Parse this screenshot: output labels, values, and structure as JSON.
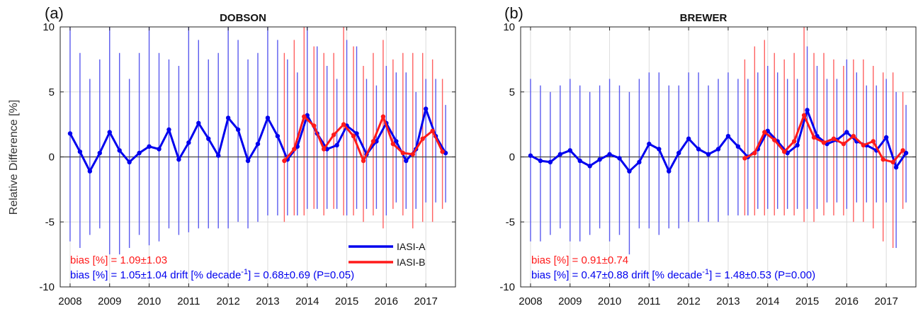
{
  "figure": {
    "ylabel": "Relative Difference [%]",
    "legend": [
      {
        "label": "IASI-A",
        "color": "#0000ee"
      },
      {
        "label": "IASI-B",
        "color": "#ff1a1a"
      }
    ],
    "colors": {
      "iasi_a": "#0000ee",
      "iasi_b": "#ff1a1a",
      "iasi_a_bar": "#5a5aee",
      "iasi_b_bar": "#ff6060"
    }
  },
  "chart_data": [
    {
      "type": "line",
      "panel_label": "(a)",
      "title": "DOBSON",
      "ylim": [
        -10,
        10
      ],
      "yticks": [
        -10,
        -5,
        0,
        5,
        10
      ],
      "xlim": [
        2007.75,
        2017.75
      ],
      "xticks": [
        2008,
        2009,
        2010,
        2011,
        2012,
        2013,
        2014,
        2015,
        2016,
        2017
      ],
      "grid": true,
      "legend_position": "bottom-right",
      "annotations": [
        "bias [%] = 1.09±1.03",
        "bias [%] = 1.05±1.04  drift [% decade",
        "-1",
        "] = 0.68±0.69 (P=0.05)"
      ],
      "series": [
        {
          "name": "IASI-A",
          "color": "#0000ee",
          "x": [
            2008.0,
            2008.25,
            2008.5,
            2008.75,
            2009.0,
            2009.25,
            2009.5,
            2009.75,
            2010.0,
            2010.25,
            2010.5,
            2010.75,
            2011.0,
            2011.25,
            2011.5,
            2011.75,
            2012.0,
            2012.25,
            2012.5,
            2012.75,
            2013.0,
            2013.25,
            2013.5,
            2013.75,
            2014.0,
            2014.25,
            2014.5,
            2014.75,
            2015.0,
            2015.25,
            2015.5,
            2015.75,
            2016.0,
            2016.25,
            2016.5,
            2016.75,
            2017.0,
            2017.25,
            2017.5
          ],
          "y": [
            1.8,
            0.4,
            -1.1,
            0.3,
            1.9,
            0.5,
            -0.4,
            0.3,
            0.8,
            0.6,
            2.1,
            -0.2,
            1.1,
            2.6,
            1.4,
            0.1,
            3.0,
            2.1,
            -0.3,
            1.0,
            3.0,
            1.6,
            -0.2,
            0.8,
            3.2,
            1.8,
            0.6,
            0.9,
            2.4,
            1.8,
            0.2,
            1.2,
            2.6,
            1.2,
            -0.3,
            0.6,
            3.7,
            1.6,
            0.3
          ],
          "err_lo": [
            -6.5,
            -7.0,
            -6.0,
            -5.5,
            -7.5,
            -7.5,
            -7.0,
            -6.0,
            -6.8,
            -6.5,
            -5.5,
            -6.0,
            -5.8,
            -5.5,
            -5.5,
            -5.5,
            -5.5,
            -5.0,
            -5.5,
            -5.0,
            -4.5,
            -4.5,
            -4.5,
            -4.5,
            -4.0,
            -4.0,
            -4.0,
            -4.0,
            -4.5,
            -4.0,
            -4.0,
            -4.0,
            -4.5,
            -3.5,
            -4.0,
            -4.0,
            -3.5,
            -3.5,
            -3.5
          ],
          "err_hi": [
            10.0,
            8.0,
            6.0,
            7.5,
            10.0,
            8.0,
            6.0,
            8.0,
            10.0,
            8.0,
            7.5,
            7.0,
            10.0,
            9.0,
            7.5,
            8.0,
            10.0,
            9.0,
            7.5,
            8.0,
            10.0,
            9.0,
            7.5,
            6.5,
            10.0,
            8.5,
            7.0,
            6.0,
            9.0,
            8.5,
            6.0,
            5.5,
            7.0,
            6.5,
            6.5,
            5.0,
            6.0,
            6.0,
            4.0
          ]
        },
        {
          "name": "IASI-B",
          "color": "#ff1a1a",
          "x": [
            2013.42,
            2013.67,
            2013.92,
            2014.17,
            2014.42,
            2014.67,
            2014.92,
            2015.17,
            2015.42,
            2015.67,
            2015.92,
            2016.17,
            2016.42,
            2016.67,
            2016.92,
            2017.17,
            2017.42
          ],
          "y": [
            -0.3,
            0.6,
            3.1,
            2.4,
            0.6,
            1.7,
            2.5,
            1.6,
            -0.3,
            1.2,
            3.1,
            1.0,
            0.3,
            0.2,
            1.4,
            2.0,
            0.4
          ],
          "err_lo": [
            -5.0,
            -4.5,
            -4.5,
            -4.0,
            -4.5,
            -4.0,
            -4.5,
            -4.5,
            -5.0,
            -4.5,
            -5.5,
            -4.0,
            -4.5,
            -5.5,
            -5.0,
            -5.0,
            -4.0
          ],
          "err_hi": [
            8.0,
            9.0,
            10.0,
            8.5,
            8.0,
            8.0,
            10.0,
            8.5,
            7.0,
            8.0,
            9.0,
            7.5,
            8.0,
            8.0,
            8.0,
            7.5,
            6.0
          ]
        }
      ]
    },
    {
      "type": "line",
      "panel_label": "(b)",
      "title": "BREWER",
      "ylim": [
        -10,
        10
      ],
      "yticks": [
        -10,
        -5,
        0,
        5,
        10
      ],
      "xlim": [
        2007.75,
        2017.75
      ],
      "xticks": [
        2008,
        2009,
        2010,
        2011,
        2012,
        2013,
        2014,
        2015,
        2016,
        2017
      ],
      "grid": true,
      "annotations": [
        "bias [%] = 0.91±0.74",
        "bias [%] = 0.47±0.88  drift [% decade",
        "-1",
        "] = 1.48±0.53 (P=0.00)"
      ],
      "series": [
        {
          "name": "IASI-A",
          "color": "#0000ee",
          "x": [
            2008.0,
            2008.25,
            2008.5,
            2008.75,
            2009.0,
            2009.25,
            2009.5,
            2009.75,
            2010.0,
            2010.25,
            2010.5,
            2010.75,
            2011.0,
            2011.25,
            2011.5,
            2011.75,
            2012.0,
            2012.25,
            2012.5,
            2012.75,
            2013.0,
            2013.25,
            2013.5,
            2013.75,
            2014.0,
            2014.25,
            2014.5,
            2014.75,
            2015.0,
            2015.25,
            2015.5,
            2015.75,
            2016.0,
            2016.25,
            2016.5,
            2016.75,
            2017.0,
            2017.25,
            2017.5
          ],
          "y": [
            0.1,
            -0.3,
            -0.4,
            0.2,
            0.5,
            -0.3,
            -0.7,
            -0.2,
            0.2,
            -0.1,
            -1.1,
            -0.4,
            1.0,
            0.6,
            -1.1,
            0.3,
            1.4,
            0.6,
            0.2,
            0.6,
            1.6,
            0.8,
            0.0,
            0.6,
            2.0,
            1.2,
            0.3,
            0.9,
            3.6,
            1.6,
            1.0,
            1.3,
            1.9,
            1.2,
            0.9,
            0.5,
            1.5,
            -0.8,
            0.3
          ],
          "err_lo": [
            -6.5,
            -6.5,
            -6.0,
            -5.5,
            -6.5,
            -6.5,
            -6.0,
            -5.5,
            -6.5,
            -6.0,
            -7.5,
            -5.5,
            -5.5,
            -6.0,
            -5.5,
            -5.5,
            -5.0,
            -5.0,
            -5.0,
            -5.0,
            -4.5,
            -4.5,
            -4.5,
            -4.0,
            -4.0,
            -4.0,
            -4.0,
            -4.0,
            -4.0,
            -4.0,
            -3.5,
            -3.5,
            -4.0,
            -3.5,
            -3.5,
            -3.5,
            -3.5,
            -7.0,
            -3.5
          ],
          "err_hi": [
            6.0,
            5.5,
            5.0,
            5.5,
            6.0,
            5.5,
            5.0,
            5.5,
            6.0,
            5.5,
            5.0,
            6.0,
            6.5,
            6.5,
            5.5,
            5.5,
            6.5,
            6.5,
            5.5,
            6.0,
            6.5,
            6.0,
            6.0,
            6.5,
            7.0,
            6.5,
            6.0,
            6.0,
            8.5,
            7.0,
            6.0,
            6.0,
            7.5,
            6.5,
            5.5,
            5.5,
            6.0,
            5.0,
            4.0
          ]
        },
        {
          "name": "IASI-B",
          "color": "#ff1a1a",
          "x": [
            2013.42,
            2013.67,
            2013.92,
            2014.17,
            2014.42,
            2014.67,
            2014.92,
            2015.17,
            2015.42,
            2015.67,
            2015.92,
            2016.17,
            2016.42,
            2016.67,
            2016.92,
            2017.17,
            2017.42
          ],
          "y": [
            -0.1,
            0.3,
            1.9,
            1.3,
            0.4,
            1.2,
            3.2,
            1.5,
            1.1,
            1.4,
            1.0,
            1.6,
            0.9,
            1.2,
            -0.2,
            -0.4,
            0.5
          ],
          "err_lo": [
            -4.5,
            -4.5,
            -4.5,
            -4.5,
            -4.5,
            -4.5,
            -5.0,
            -5.0,
            -4.5,
            -4.5,
            -4.5,
            -5.0,
            -5.0,
            -5.5,
            -6.5,
            -7.0,
            -4.0
          ],
          "err_hi": [
            7.5,
            8.5,
            9.0,
            8.0,
            7.5,
            8.0,
            10.0,
            8.0,
            8.0,
            7.5,
            7.0,
            7.5,
            7.5,
            7.0,
            6.5,
            6.5,
            5.0
          ]
        }
      ]
    }
  ]
}
